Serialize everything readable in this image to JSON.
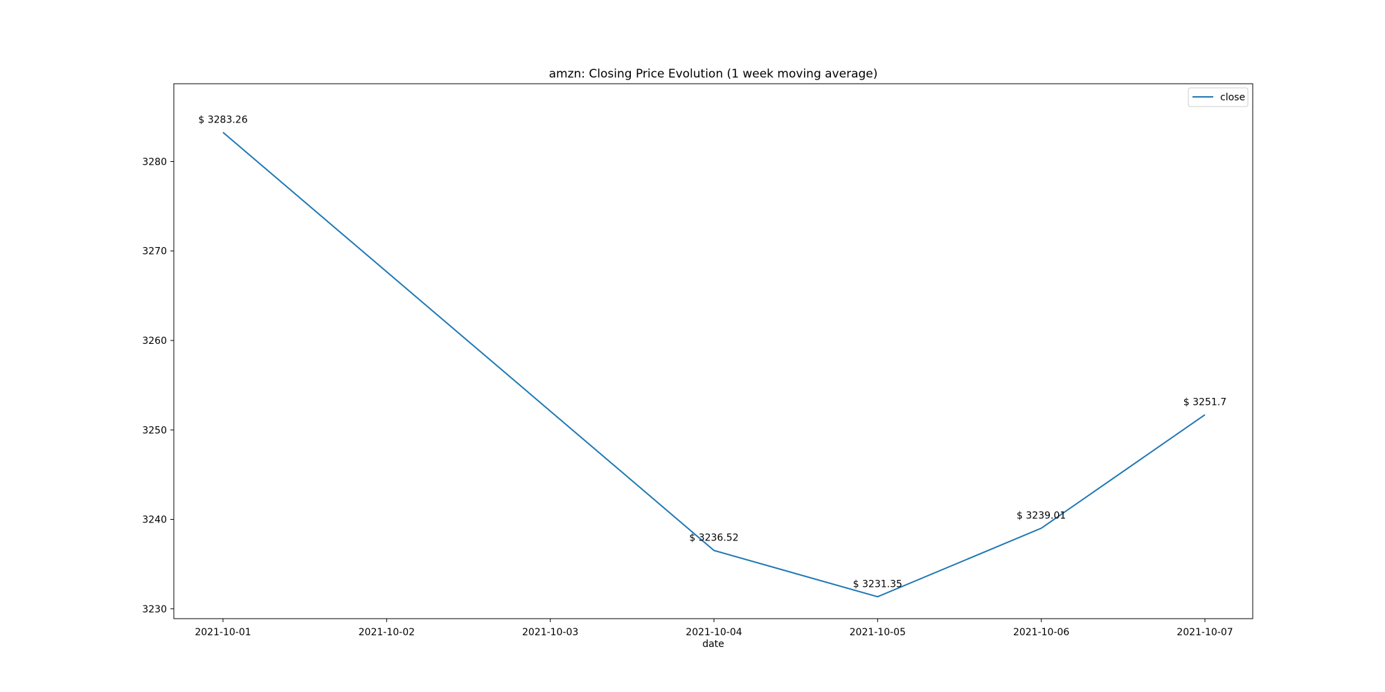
{
  "chart_data": {
    "type": "line",
    "title": "amzn: Closing Price Evolution (1 week moving average)",
    "xlabel": "date",
    "ylabel": "",
    "x": [
      "2021-10-01",
      "2021-10-04",
      "2021-10-05",
      "2021-10-06",
      "2021-10-07"
    ],
    "x_ticks": [
      "2021-10-01",
      "2021-10-02",
      "2021-10-03",
      "2021-10-04",
      "2021-10-05",
      "2021-10-06",
      "2021-10-07"
    ],
    "y_ticks": [
      3230,
      3240,
      3250,
      3260,
      3270,
      3280
    ],
    "ylim": [
      3228.9,
      3288.7
    ],
    "series": [
      {
        "name": "close",
        "values": [
          3283.26,
          3236.52,
          3231.35,
          3239.01,
          3251.7
        ],
        "labels": [
          "$ 3283.26",
          "$ 3236.52",
          "$ 3231.35",
          "$ 3239.01",
          "$ 3251.7"
        ],
        "color": "#1f77b4"
      }
    ],
    "grid": false,
    "legend": "top-right"
  }
}
